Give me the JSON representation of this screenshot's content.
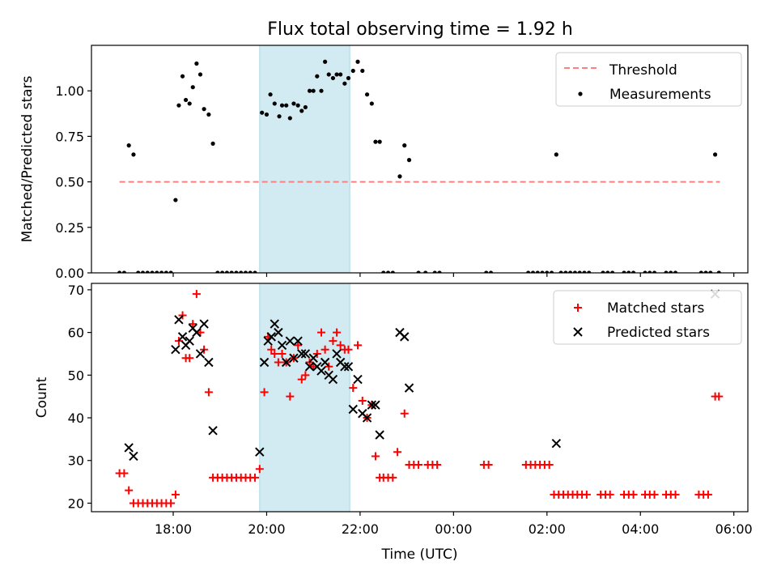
{
  "figure": {
    "title": "Flux total observing time = 1.92 h",
    "highlight_color": "#add8e6",
    "threshold_color": "#ff8080",
    "matched_color": "#ff0000",
    "predicted_color": "#000000",
    "measurement_color": "#000000"
  },
  "chart_data": [
    {
      "type": "scatter",
      "panel": "top",
      "ylabel": "Matched/Predicted stars",
      "xlabel": "",
      "x_unit": "hours since 00:00 UTC of the first night; values >24 are next day",
      "xlim": [
        16.25,
        30.3
      ],
      "ylim": [
        0,
        1.25
      ],
      "yticks": [
        0,
        0.25,
        0.5,
        0.75,
        1.0
      ],
      "ytick_labels": [
        "0.00",
        "0.25",
        "0.50",
        "0.75",
        "1.00"
      ],
      "grid": false,
      "legend": {
        "placement": "top-right",
        "entries": [
          "Threshold",
          "Measurements"
        ]
      },
      "highlight_span": [
        19.85,
        21.78
      ],
      "threshold": {
        "name": "Threshold",
        "value": 0.5,
        "x_range": [
          16.85,
          29.7
        ]
      },
      "series": [
        {
          "name": "Measurements",
          "points": [
            [
              16.85,
              0
            ],
            [
              16.95,
              0
            ],
            [
              17.05,
              0.7
            ],
            [
              17.15,
              0.65
            ],
            [
              17.25,
              0
            ],
            [
              17.35,
              0
            ],
            [
              17.45,
              0
            ],
            [
              17.55,
              0
            ],
            [
              17.65,
              0
            ],
            [
              17.75,
              0
            ],
            [
              17.85,
              0
            ],
            [
              17.95,
              0
            ],
            [
              18.05,
              0.4
            ],
            [
              18.12,
              0.92
            ],
            [
              18.2,
              1.08
            ],
            [
              18.27,
              0.95
            ],
            [
              18.35,
              0.93
            ],
            [
              18.42,
              1.02
            ],
            [
              18.5,
              1.15
            ],
            [
              18.58,
              1.09
            ],
            [
              18.66,
              0.9
            ],
            [
              18.76,
              0.87
            ],
            [
              18.85,
              0.71
            ],
            [
              18.95,
              0
            ],
            [
              19.05,
              0
            ],
            [
              19.15,
              0
            ],
            [
              19.25,
              0
            ],
            [
              19.35,
              0
            ],
            [
              19.45,
              0
            ],
            [
              19.55,
              0
            ],
            [
              19.65,
              0
            ],
            [
              19.75,
              0
            ],
            [
              19.9,
              0.88
            ],
            [
              20.0,
              0.87
            ],
            [
              20.08,
              0.98
            ],
            [
              20.17,
              0.93
            ],
            [
              20.27,
              0.86
            ],
            [
              20.33,
              0.92
            ],
            [
              20.42,
              0.92
            ],
            [
              20.5,
              0.85
            ],
            [
              20.58,
              0.93
            ],
            [
              20.67,
              0.92
            ],
            [
              20.75,
              0.89
            ],
            [
              20.83,
              0.91
            ],
            [
              20.92,
              1.0
            ],
            [
              21.0,
              1.0
            ],
            [
              21.08,
              1.08
            ],
            [
              21.17,
              1.0
            ],
            [
              21.25,
              1.16
            ],
            [
              21.33,
              1.09
            ],
            [
              21.42,
              1.07
            ],
            [
              21.5,
              1.09
            ],
            [
              21.58,
              1.09
            ],
            [
              21.67,
              1.04
            ],
            [
              21.75,
              1.07
            ],
            [
              21.85,
              1.11
            ],
            [
              21.95,
              1.16
            ],
            [
              22.05,
              1.11
            ],
            [
              22.15,
              0.98
            ],
            [
              22.25,
              0.93
            ],
            [
              22.33,
              0.72
            ],
            [
              22.42,
              0.72
            ],
            [
              22.5,
              0
            ],
            [
              22.6,
              0
            ],
            [
              22.7,
              0
            ],
            [
              22.85,
              0.53
            ],
            [
              22.95,
              0.7
            ],
            [
              23.05,
              0.62
            ],
            [
              23.25,
              0
            ],
            [
              23.4,
              0
            ],
            [
              23.6,
              0
            ],
            [
              23.7,
              0
            ],
            [
              24.7,
              0
            ],
            [
              24.8,
              0
            ],
            [
              25.6,
              0
            ],
            [
              25.7,
              0
            ],
            [
              25.8,
              0
            ],
            [
              25.9,
              0
            ],
            [
              26.0,
              0
            ],
            [
              26.1,
              0
            ],
            [
              26.2,
              0.65
            ],
            [
              26.3,
              0
            ],
            [
              26.4,
              0
            ],
            [
              26.5,
              0
            ],
            [
              26.6,
              0
            ],
            [
              26.7,
              0
            ],
            [
              26.8,
              0
            ],
            [
              26.9,
              0
            ],
            [
              27.2,
              0
            ],
            [
              27.3,
              0
            ],
            [
              27.4,
              0
            ],
            [
              27.65,
              0
            ],
            [
              27.75,
              0
            ],
            [
              27.85,
              0
            ],
            [
              28.1,
              0
            ],
            [
              28.2,
              0
            ],
            [
              28.3,
              0
            ],
            [
              28.55,
              0
            ],
            [
              28.65,
              0
            ],
            [
              28.75,
              0
            ],
            [
              29.3,
              0
            ],
            [
              29.4,
              0
            ],
            [
              29.5,
              0
            ],
            [
              29.6,
              0.65
            ],
            [
              29.68,
              0
            ]
          ]
        }
      ]
    },
    {
      "type": "scatter",
      "panel": "bottom",
      "ylabel": "Count",
      "xlabel": "Time (UTC)",
      "x_unit": "hours since 00:00 UTC of the first night; values >24 are next day",
      "xlim": [
        16.25,
        30.3
      ],
      "ylim": [
        18,
        71.5
      ],
      "yticks": [
        20,
        30,
        40,
        50,
        60,
        70
      ],
      "ytick_labels": [
        "20",
        "30",
        "40",
        "50",
        "60",
        "70"
      ],
      "xticks": [
        18,
        20,
        22,
        24,
        26,
        28,
        30
      ],
      "xtick_labels": [
        "18:00",
        "20:00",
        "22:00",
        "00:00",
        "02:00",
        "04:00",
        "06:00"
      ],
      "grid": false,
      "legend": {
        "placement": "top-right",
        "entries": [
          "Matched stars",
          "Predicted stars"
        ]
      },
      "highlight_span": [
        19.85,
        21.78
      ],
      "series": [
        {
          "name": "Matched stars",
          "marker": "plus",
          "points": [
            [
              16.85,
              27
            ],
            [
              16.95,
              27
            ],
            [
              17.05,
              23
            ],
            [
              17.15,
              20
            ],
            [
              17.25,
              20
            ],
            [
              17.35,
              20
            ],
            [
              17.45,
              20
            ],
            [
              17.55,
              20
            ],
            [
              17.65,
              20
            ],
            [
              17.75,
              20
            ],
            [
              17.85,
              20
            ],
            [
              17.95,
              20
            ],
            [
              18.05,
              22
            ],
            [
              18.12,
              58
            ],
            [
              18.2,
              64
            ],
            [
              18.27,
              54
            ],
            [
              18.35,
              54
            ],
            [
              18.42,
              62
            ],
            [
              18.5,
              69
            ],
            [
              18.58,
              60
            ],
            [
              18.66,
              56
            ],
            [
              18.76,
              46
            ],
            [
              18.85,
              26
            ],
            [
              18.95,
              26
            ],
            [
              19.05,
              26
            ],
            [
              19.15,
              26
            ],
            [
              19.25,
              26
            ],
            [
              19.35,
              26
            ],
            [
              19.45,
              26
            ],
            [
              19.55,
              26
            ],
            [
              19.65,
              26
            ],
            [
              19.75,
              26
            ],
            [
              19.85,
              28
            ],
            [
              19.95,
              46
            ],
            [
              20.03,
              59
            ],
            [
              20.1,
              56
            ],
            [
              20.17,
              55
            ],
            [
              20.25,
              53
            ],
            [
              20.33,
              55
            ],
            [
              20.42,
              53
            ],
            [
              20.5,
              45
            ],
            [
              20.58,
              54
            ],
            [
              20.67,
              57
            ],
            [
              20.75,
              49
            ],
            [
              20.83,
              50
            ],
            [
              20.92,
              53
            ],
            [
              21.0,
              52
            ],
            [
              21.08,
              55
            ],
            [
              21.17,
              60
            ],
            [
              21.25,
              56
            ],
            [
              21.33,
              52
            ],
            [
              21.42,
              58
            ],
            [
              21.5,
              60
            ],
            [
              21.58,
              57
            ],
            [
              21.67,
              56
            ],
            [
              21.75,
              56
            ],
            [
              21.85,
              47
            ],
            [
              21.95,
              57
            ],
            [
              22.05,
              44
            ],
            [
              22.15,
              40
            ],
            [
              22.25,
              43
            ],
            [
              22.33,
              31
            ],
            [
              22.42,
              26
            ],
            [
              22.5,
              26
            ],
            [
              22.6,
              26
            ],
            [
              22.7,
              26
            ],
            [
              22.8,
              32
            ],
            [
              22.95,
              41
            ],
            [
              23.05,
              29
            ],
            [
              23.15,
              29
            ],
            [
              23.25,
              29
            ],
            [
              23.45,
              29
            ],
            [
              23.55,
              29
            ],
            [
              23.65,
              29
            ],
            [
              24.65,
              29
            ],
            [
              24.75,
              29
            ],
            [
              25.55,
              29
            ],
            [
              25.65,
              29
            ],
            [
              25.75,
              29
            ],
            [
              25.85,
              29
            ],
            [
              25.95,
              29
            ],
            [
              26.05,
              29
            ],
            [
              26.15,
              22
            ],
            [
              26.25,
              22
            ],
            [
              26.35,
              22
            ],
            [
              26.45,
              22
            ],
            [
              26.55,
              22
            ],
            [
              26.65,
              22
            ],
            [
              26.75,
              22
            ],
            [
              26.85,
              22
            ],
            [
              27.15,
              22
            ],
            [
              27.25,
              22
            ],
            [
              27.35,
              22
            ],
            [
              27.65,
              22
            ],
            [
              27.75,
              22
            ],
            [
              27.85,
              22
            ],
            [
              28.1,
              22
            ],
            [
              28.2,
              22
            ],
            [
              28.3,
              22
            ],
            [
              28.55,
              22
            ],
            [
              28.65,
              22
            ],
            [
              28.75,
              22
            ],
            [
              29.25,
              22
            ],
            [
              29.35,
              22
            ],
            [
              29.45,
              22
            ],
            [
              29.6,
              45
            ],
            [
              29.68,
              45
            ]
          ]
        },
        {
          "name": "Predicted stars",
          "marker": "x",
          "points": [
            [
              17.05,
              33
            ],
            [
              17.15,
              31
            ],
            [
              18.05,
              56
            ],
            [
              18.12,
              63
            ],
            [
              18.2,
              59
            ],
            [
              18.27,
              57
            ],
            [
              18.35,
              58
            ],
            [
              18.42,
              61
            ],
            [
              18.5,
              60
            ],
            [
              18.58,
              55
            ],
            [
              18.66,
              62
            ],
            [
              18.76,
              53
            ],
            [
              18.85,
              37
            ],
            [
              19.85,
              32
            ],
            [
              19.95,
              53
            ],
            [
              20.03,
              58
            ],
            [
              20.1,
              59
            ],
            [
              20.17,
              62
            ],
            [
              20.25,
              60
            ],
            [
              20.33,
              57
            ],
            [
              20.42,
              53
            ],
            [
              20.5,
              58
            ],
            [
              20.58,
              54
            ],
            [
              20.67,
              58
            ],
            [
              20.75,
              55
            ],
            [
              20.83,
              55
            ],
            [
              20.92,
              52
            ],
            [
              21.0,
              54
            ],
            [
              21.08,
              52
            ],
            [
              21.17,
              51
            ],
            [
              21.25,
              53
            ],
            [
              21.33,
              50
            ],
            [
              21.42,
              49
            ],
            [
              21.5,
              55
            ],
            [
              21.58,
              53
            ],
            [
              21.67,
              52
            ],
            [
              21.75,
              52
            ],
            [
              21.85,
              42
            ],
            [
              21.95,
              49
            ],
            [
              22.05,
              41
            ],
            [
              22.15,
              40
            ],
            [
              22.25,
              43
            ],
            [
              22.33,
              43
            ],
            [
              22.42,
              36
            ],
            [
              22.85,
              60
            ],
            [
              22.95,
              59
            ],
            [
              23.05,
              47
            ],
            [
              26.2,
              34
            ],
            [
              29.6,
              69
            ]
          ]
        }
      ]
    }
  ]
}
